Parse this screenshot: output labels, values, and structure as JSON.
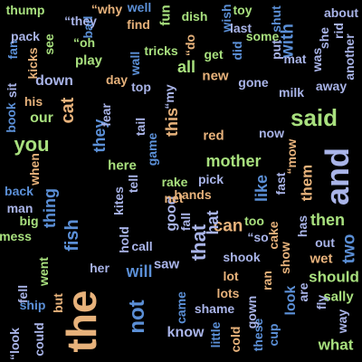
{
  "background": "#000000",
  "palette": {
    "blue": "#5B8FD6",
    "green": "#A8E07E",
    "lavender": "#A9B4E8",
    "orange": "#E7B27B"
  },
  "words": [
    {
      "text": "the",
      "color": "orange"
    },
    {
      "text": "and",
      "color": "lavender"
    },
    {
      "text": "said",
      "color": "green"
    },
    {
      "text": "you",
      "color": "green"
    },
    {
      "text": "not",
      "color": "blue"
    },
    {
      "text": "will",
      "color": "blue"
    },
    {
      "text": "that",
      "color": "lavender"
    },
    {
      "text": "then",
      "color": "green"
    },
    {
      "text": "with",
      "color": "blue"
    },
    {
      "text": "fish",
      "color": "blue"
    },
    {
      "text": "thing",
      "color": "blue"
    },
    {
      "text": "cat",
      "color": "orange"
    },
    {
      "text": "mother",
      "color": "green"
    },
    {
      "text": "like",
      "color": "blue"
    },
    {
      "text": "them",
      "color": "orange"
    },
    {
      "text": "two",
      "color": "blue"
    },
    {
      "text": "know",
      "color": "lavender"
    },
    {
      "text": "should",
      "color": "green"
    },
    {
      "text": "what",
      "color": "green"
    },
    {
      "text": "can",
      "color": "orange"
    },
    {
      "text": "all",
      "color": "green"
    },
    {
      "text": "our",
      "color": "green"
    },
    {
      "text": "they",
      "color": "blue"
    },
    {
      "text": "this",
      "color": "orange"
    },
    {
      "text": "hat",
      "color": "lavender"
    },
    {
      "text": "good",
      "color": "lavender"
    },
    {
      "text": "look",
      "color": "blue"
    },
    {
      "text": "down",
      "color": "lavender"
    },
    {
      "text": "play",
      "color": "green"
    },
    {
      "text": "here",
      "color": "green"
    },
    {
      "text": "fun",
      "color": "green"
    },
    {
      "text": "wet",
      "color": "orange"
    },
    {
      "text": "sally",
      "color": "green"
    },
    {
      "text": "new",
      "color": "orange"
    },
    {
      "text": "red",
      "color": "orange"
    },
    {
      "text": "saw",
      "color": "lavender"
    },
    {
      "text": "ship",
      "color": "blue"
    },
    {
      "text": "lots",
      "color": "orange"
    },
    {
      "text": "lot",
      "color": "orange"
    },
    {
      "text": "shame",
      "color": "lavender"
    },
    {
      "text": "game",
      "color": "blue"
    },
    {
      "text": "hands",
      "color": "orange"
    },
    {
      "text": "pick",
      "color": "lavender"
    },
    {
      "text": "rake",
      "color": "green"
    },
    {
      "text": "net",
      "color": "orange"
    },
    {
      "text": "away",
      "color": "lavender"
    },
    {
      "text": "now",
      "color": "lavender"
    },
    {
      "text": "out",
      "color": "lavender"
    },
    {
      "text": "milk",
      "color": "lavender"
    },
    {
      "text": "gone",
      "color": "lavender"
    },
    {
      "text": "mess",
      "color": "green"
    },
    {
      "text": "man",
      "color": "lavender"
    },
    {
      "text": "back",
      "color": "blue"
    },
    {
      "text": "big",
      "color": "green"
    },
    {
      "text": "call",
      "color": "lavender"
    },
    {
      "text": "her",
      "color": "lavender"
    },
    {
      "text": "his",
      "color": "orange"
    },
    {
      "text": "too",
      "color": "green"
    },
    {
      "text": "shook",
      "color": "lavender"
    },
    {
      "text": "cake",
      "color": "orange"
    },
    {
      "text": "went",
      "color": "green"
    },
    {
      "text": "could",
      "color": "lavender"
    },
    {
      "text": "fell",
      "color": "lavender"
    },
    {
      "text": "bad",
      "color": "blue"
    },
    {
      "text": "came",
      "color": "blue"
    },
    {
      "text": "little",
      "color": "blue"
    },
    {
      "text": "cold",
      "color": "orange"
    },
    {
      "text": "cup",
      "color": "blue"
    },
    {
      "text": "fan",
      "color": "blue"
    },
    {
      "text": "pack",
      "color": "lavender"
    },
    {
      "text": "kicks",
      "color": "orange"
    },
    {
      "text": "see",
      "color": "green"
    },
    {
      "text": "thump",
      "color": "green"
    },
    {
      "text": "“they",
      "color": "lavender"
    },
    {
      "text": "“oh",
      "color": "green"
    },
    {
      "text": "well",
      "color": "blue"
    },
    {
      "text": "find",
      "color": "orange"
    },
    {
      "text": "“why",
      "color": "orange"
    },
    {
      "text": "dish",
      "color": "green"
    },
    {
      "text": "toy",
      "color": "green"
    },
    {
      "text": "last",
      "color": "lavender"
    },
    {
      "text": "about",
      "color": "lavender"
    },
    {
      "text": "rid",
      "color": "lavender"
    },
    {
      "text": "get",
      "color": "green"
    },
    {
      "text": "tricks",
      "color": "green"
    },
    {
      "text": "wall",
      "color": "blue"
    },
    {
      "text": "day",
      "color": "orange"
    },
    {
      "text": "top",
      "color": "lavender"
    },
    {
      "text": "wish",
      "color": "blue"
    },
    {
      "text": "some",
      "color": "green"
    },
    {
      "text": "put",
      "color": "lavender"
    },
    {
      "text": "mat",
      "color": "lavender"
    },
    {
      "text": "was",
      "color": "lavender"
    },
    {
      "text": "shut",
      "color": "blue"
    },
    {
      "text": "did",
      "color": "blue"
    },
    {
      "text": "she",
      "color": "lavender"
    },
    {
      "text": "another",
      "color": "lavender"
    },
    {
      "text": "fear",
      "color": "lavender"
    },
    {
      "text": "tell",
      "color": "lavender"
    },
    {
      "text": "tail",
      "color": "lavender"
    },
    {
      "text": "kites",
      "color": "lavender"
    },
    {
      "text": "hold",
      "color": "lavender"
    },
    {
      "text": "fall",
      "color": "lavender"
    },
    {
      "text": "fast",
      "color": "lavender"
    },
    {
      "text": "ran",
      "color": "orange"
    },
    {
      "text": "are",
      "color": "lavender"
    },
    {
      "text": "fly",
      "color": "lavender"
    },
    {
      "text": "these",
      "color": "blue"
    },
    {
      "text": "show",
      "color": "orange"
    },
    {
      "text": "gown",
      "color": "lavender"
    },
    {
      "text": "has",
      "color": "lavender"
    },
    {
      "text": "way",
      "color": "lavender"
    },
    {
      "text": "sit",
      "color": "lavender"
    },
    {
      "text": "book",
      "color": "blue"
    },
    {
      "text": "when",
      "color": "orange"
    },
    {
      "text": "but",
      "color": "orange"
    },
    {
      "text": "“look",
      "color": "lavender"
    },
    {
      "text": "“so",
      "color": "lavender"
    },
    {
      "text": "“my",
      "color": "lavender"
    },
    {
      "text": "“mow",
      "color": "orange"
    },
    {
      "text": "“do",
      "color": "orange"
    }
  ]
}
